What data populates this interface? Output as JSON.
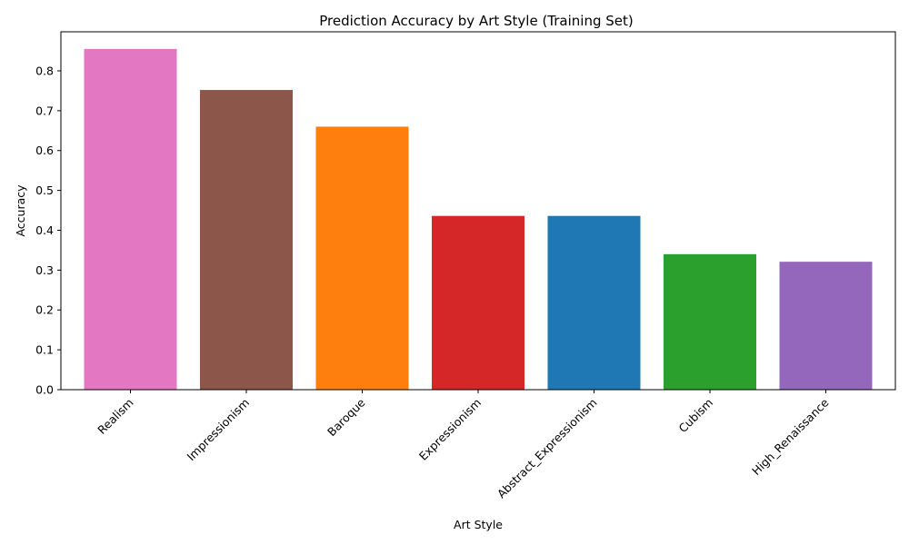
{
  "chart_data": {
    "type": "bar",
    "title": "Prediction Accuracy by Art Style (Training Set)",
    "xlabel": "Art Style",
    "ylabel": "Accuracy",
    "categories": [
      "Realism",
      "Impressionism",
      "Baroque",
      "Expressionism",
      "Abstract_Expressionism",
      "Cubism",
      "High_Renaissance"
    ],
    "values": [
      0.855,
      0.752,
      0.66,
      0.436,
      0.436,
      0.34,
      0.321
    ],
    "colors": [
      "#e377c2",
      "#8c564b",
      "#ff7f0e",
      "#d62728",
      "#1f77b4",
      "#2ca02c",
      "#9467bd"
    ],
    "ylim": [
      0,
      0.898
    ],
    "yticks": [
      0.0,
      0.1,
      0.2,
      0.3,
      0.4,
      0.5,
      0.6,
      0.7,
      0.8
    ],
    "ytick_labels": [
      "0.0",
      "0.1",
      "0.2",
      "0.3",
      "0.4",
      "0.5",
      "0.6",
      "0.7",
      "0.8"
    ],
    "grid": false,
    "legend": "none"
  }
}
